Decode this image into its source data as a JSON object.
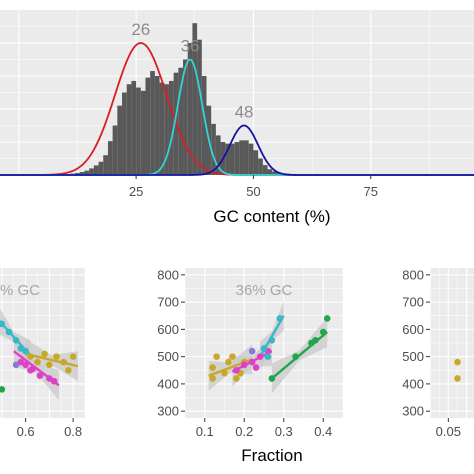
{
  "chart_data": [
    {
      "type": "histogram",
      "xlabel": "GC content (%)",
      "xlim": [
        -4,
        97
      ],
      "ylim": [
        0,
        1
      ],
      "x_ticks": [
        "25",
        "50",
        "75"
      ],
      "grid": true,
      "hist": {
        "bin_width": 1,
        "start": 0,
        "heights": [
          0,
          0,
          0,
          0,
          0,
          0,
          0,
          0,
          0,
          0.002,
          0.004,
          0.008,
          0.012,
          0.018,
          0.026,
          0.04,
          0.058,
          0.08,
          0.12,
          0.205,
          0.3,
          0.42,
          0.5,
          0.55,
          0.57,
          0.53,
          0.51,
          0.59,
          0.63,
          0.6,
          0.56,
          0.55,
          0.57,
          0.62,
          0.65,
          0.7,
          0.8,
          0.92,
          0.82,
          0.6,
          0.42,
          0.31,
          0.24,
          0.2,
          0.19,
          0.19,
          0.2,
          0.21,
          0.21,
          0.19,
          0.15,
          0.1,
          0.06,
          0.035,
          0.022,
          0.015,
          0.01,
          0.007,
          0.005,
          0.003,
          0.002,
          0.001,
          0,
          0,
          0,
          0,
          0,
          0,
          0,
          0,
          0,
          0,
          0,
          0,
          0,
          0,
          0,
          0,
          0,
          0,
          0,
          0,
          0,
          0,
          0,
          0,
          0,
          0,
          0,
          0,
          0,
          0,
          0,
          0,
          0,
          0
        ]
      },
      "fits": [
        {
          "label": "26",
          "color": "#d61f26",
          "mean": 26,
          "sd": 5.5,
          "peak": 0.8
        },
        {
          "label": "36",
          "color": "#2ed6d6",
          "mean": 36.5,
          "sd": 2.6,
          "peak": 0.7
        },
        {
          "label": "48",
          "color": "#1414a0",
          "mean": 48,
          "sd": 3,
          "peak": 0.3
        }
      ]
    },
    {
      "type": "scatter",
      "title": "% GC",
      "x_ticks": [
        "0.6",
        "0.8"
      ],
      "y_ticks": [],
      "xlim": [
        0.45,
        0.85
      ],
      "ylim": [
        275,
        825
      ],
      "grid": true,
      "series": [
        {
          "color": "#e040c8",
          "points": [
            [
              0.58,
              480
            ],
            [
              0.6,
              470
            ],
            [
              0.63,
              455
            ],
            [
              0.66,
              430
            ],
            [
              0.7,
              420
            ],
            [
              0.72,
              410
            ],
            [
              0.62,
              450
            ]
          ],
          "fit": [
            [
              0.55,
              520
            ],
            [
              0.74,
              395
            ]
          ]
        },
        {
          "color": "#36b8c8",
          "points": [
            [
              0.5,
              620
            ],
            [
              0.53,
              590
            ],
            [
              0.56,
              560
            ],
            [
              0.58,
              530
            ],
            [
              0.6,
              520
            ]
          ],
          "fit": [
            [
              0.48,
              640
            ],
            [
              0.62,
              505
            ]
          ]
        },
        {
          "color": "#c8a82a",
          "points": [
            [
              0.62,
              500
            ],
            [
              0.65,
              480
            ],
            [
              0.68,
              510
            ],
            [
              0.7,
              470
            ],
            [
              0.73,
              500
            ],
            [
              0.76,
              480
            ],
            [
              0.8,
              500
            ],
            [
              0.78,
              450
            ]
          ],
          "fit": [
            [
              0.6,
              510
            ],
            [
              0.82,
              465
            ]
          ]
        },
        {
          "color": "#8a78d8",
          "points": [
            [
              0.56,
              470
            ]
          ]
        },
        {
          "color": "#1ea84a",
          "points": [
            [
              0.5,
              380
            ]
          ]
        }
      ]
    },
    {
      "type": "scatter",
      "title": "36% GC",
      "xlabel": "Fraction",
      "x_ticks": [
        "0.1",
        "0.2",
        "0.3",
        "0.4"
      ],
      "y_ticks": [
        "300",
        "400",
        "500",
        "600",
        "700",
        "800"
      ],
      "xlim": [
        0.05,
        0.45
      ],
      "ylim": [
        275,
        825
      ],
      "grid": true,
      "series": [
        {
          "color": "#c8a82a",
          "points": [
            [
              0.12,
              420
            ],
            [
              0.12,
              460
            ],
            [
              0.13,
              500
            ],
            [
              0.15,
              440
            ],
            [
              0.16,
              480
            ],
            [
              0.18,
              420
            ],
            [
              0.19,
              440
            ],
            [
              0.2,
              480
            ],
            [
              0.17,
              500
            ]
          ],
          "fit": [
            [
              0.11,
              430
            ],
            [
              0.22,
              490
            ]
          ]
        },
        {
          "color": "#e040c8",
          "points": [
            [
              0.18,
              450
            ],
            [
              0.2,
              470
            ],
            [
              0.22,
              480
            ],
            [
              0.24,
              500
            ],
            [
              0.26,
              520
            ],
            [
              0.23,
              460
            ]
          ],
          "fit": [
            [
              0.17,
              445
            ],
            [
              0.27,
              520
            ]
          ]
        },
        {
          "color": "#36b8c8",
          "points": [
            [
              0.25,
              530
            ],
            [
              0.27,
              560
            ],
            [
              0.29,
              640
            ],
            [
              0.26,
              500
            ]
          ],
          "fit": [
            [
              0.24,
              500
            ],
            [
              0.3,
              650
            ]
          ]
        },
        {
          "color": "#1ea84a",
          "points": [
            [
              0.27,
              420
            ],
            [
              0.33,
              500
            ],
            [
              0.37,
              550
            ],
            [
              0.4,
              590
            ],
            [
              0.41,
              640
            ],
            [
              0.38,
              560
            ]
          ],
          "fit": [
            [
              0.27,
              420
            ],
            [
              0.41,
              590
            ]
          ]
        },
        {
          "color": "#8a78d8",
          "points": [
            [
              0.22,
              520
            ]
          ]
        }
      ]
    },
    {
      "type": "scatter",
      "title": "",
      "x_ticks": [
        "0.05"
      ],
      "y_ticks": [
        "300",
        "400",
        "500",
        "600",
        "700",
        "800"
      ],
      "xlim": [
        0,
        0.12
      ],
      "ylim": [
        275,
        825
      ],
      "grid": true,
      "series": [
        {
          "color": "#c8a82a",
          "points": [
            [
              0.075,
              420
            ],
            [
              0.075,
              480
            ]
          ]
        }
      ]
    }
  ]
}
